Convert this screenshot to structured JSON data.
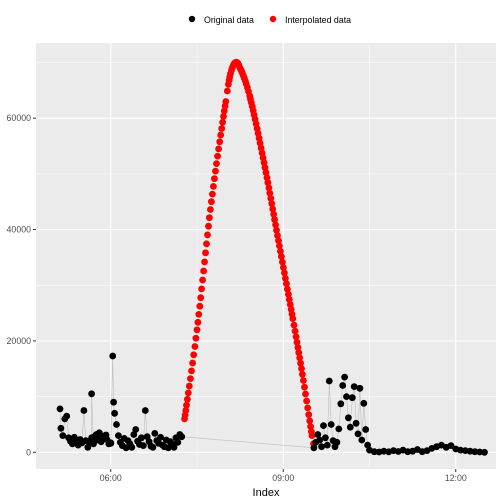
{
  "chart_data": {
    "type": "scatter",
    "title": "",
    "xlabel": "Index",
    "ylabel": "",
    "x_ticks": [
      "06:00",
      "09:00",
      "12:00"
    ],
    "y_ticks": [
      "0",
      "20000",
      "40000",
      "60000"
    ],
    "x_range": [
      "04:42",
      "12:42"
    ],
    "ylim": [
      -3000,
      73500
    ],
    "grid": true,
    "legend_position": "top",
    "series": [
      {
        "name": "Original data",
        "color": "#000000",
        "connector_line_color": "#bdbdbd",
        "points": [
          [
            "05:07",
            7800
          ],
          [
            "05:08",
            4300
          ],
          [
            "05:10",
            3000
          ],
          [
            "05:12",
            6000
          ],
          [
            "05:14",
            6500
          ],
          [
            "05:16",
            2600
          ],
          [
            "05:18",
            2000
          ],
          [
            "05:20",
            1500
          ],
          [
            "05:22",
            2700
          ],
          [
            "05:24",
            1900
          ],
          [
            "05:26",
            1300
          ],
          [
            "05:28",
            2300
          ],
          [
            "05:30",
            1700
          ],
          [
            "05:32",
            7500
          ],
          [
            "05:34",
            2100
          ],
          [
            "05:36",
            900
          ],
          [
            "05:38",
            1800
          ],
          [
            "05:40",
            2600
          ],
          [
            "05:42",
            1500
          ],
          [
            "05:44",
            3000
          ],
          [
            "05:46",
            2200
          ],
          [
            "05:48",
            3500
          ],
          [
            "05:50",
            1900
          ],
          [
            "05:52",
            2800
          ],
          [
            "05:54",
            3000
          ],
          [
            "05:56",
            2300
          ],
          [
            "05:58",
            1500
          ],
          [
            "06:00",
            1700
          ],
          [
            "05:40",
            10500
          ],
          [
            "05:45",
            3200
          ],
          [
            "05:50",
            2400
          ],
          [
            "05:55",
            3100
          ],
          [
            "06:00",
            1600
          ],
          [
            "06:02",
            17300
          ],
          [
            "06:03",
            9000
          ],
          [
            "06:04",
            7000
          ],
          [
            "06:06",
            5000
          ],
          [
            "06:08",
            3000
          ],
          [
            "06:10",
            1800
          ],
          [
            "06:12",
            1200
          ],
          [
            "06:14",
            2500
          ],
          [
            "06:16",
            800
          ],
          [
            "06:18",
            2100
          ],
          [
            "06:20",
            1500
          ],
          [
            "06:22",
            900
          ],
          [
            "06:24",
            3200
          ],
          [
            "06:26",
            4100
          ],
          [
            "06:28",
            2000
          ],
          [
            "06:30",
            1400
          ],
          [
            "06:32",
            2600
          ],
          [
            "06:34",
            1200
          ],
          [
            "06:36",
            7500
          ],
          [
            "06:38",
            2800
          ],
          [
            "06:40",
            1900
          ],
          [
            "06:42",
            1100
          ],
          [
            "06:44",
            900
          ],
          [
            "06:46",
            3400
          ],
          [
            "06:48",
            2100
          ],
          [
            "06:50",
            1600
          ],
          [
            "06:52",
            2700
          ],
          [
            "06:54",
            1300
          ],
          [
            "06:56",
            1000
          ],
          [
            "06:58",
            2200
          ],
          [
            "07:00",
            800
          ],
          [
            "07:02",
            1900
          ],
          [
            "07:04",
            1500
          ],
          [
            "07:06",
            900
          ],
          [
            "07:08",
            2600
          ],
          [
            "07:10",
            1800
          ],
          [
            "07:12",
            3200
          ],
          [
            "07:14",
            2800
          ],
          [
            "09:32",
            800
          ],
          [
            "09:34",
            1800
          ],
          [
            "09:36",
            3200
          ],
          [
            "09:38",
            2200
          ],
          [
            "09:40",
            1000
          ],
          [
            "09:42",
            4800
          ],
          [
            "09:44",
            2600
          ],
          [
            "09:46",
            1300
          ],
          [
            "09:48",
            12800
          ],
          [
            "09:50",
            5000
          ],
          [
            "09:52",
            2100
          ],
          [
            "09:54",
            1000
          ],
          [
            "09:56",
            1800
          ],
          [
            "09:58",
            4200
          ],
          [
            "10:00",
            8700
          ],
          [
            "10:02",
            12000
          ],
          [
            "10:04",
            13500
          ],
          [
            "10:06",
            10000
          ],
          [
            "10:08",
            6200
          ],
          [
            "10:10",
            4500
          ],
          [
            "10:12",
            9800
          ],
          [
            "10:14",
            11800
          ],
          [
            "10:16",
            5200
          ],
          [
            "10:18",
            3300
          ],
          [
            "10:20",
            11500
          ],
          [
            "10:22",
            2200
          ],
          [
            "10:24",
            8800
          ],
          [
            "10:26",
            4100
          ],
          [
            "10:28",
            1300
          ],
          [
            "10:30",
            400
          ],
          [
            "10:35",
            100
          ],
          [
            "10:40",
            50
          ],
          [
            "10:45",
            200
          ],
          [
            "10:50",
            80
          ],
          [
            "10:55",
            300
          ],
          [
            "11:00",
            150
          ],
          [
            "11:05",
            400
          ],
          [
            "11:10",
            100
          ],
          [
            "11:15",
            200
          ],
          [
            "11:20",
            500
          ],
          [
            "11:25",
            100
          ],
          [
            "11:30",
            300
          ],
          [
            "11:35",
            700
          ],
          [
            "11:40",
            1000
          ],
          [
            "11:45",
            1300
          ],
          [
            "11:50",
            900
          ],
          [
            "11:55",
            1200
          ],
          [
            "12:00",
            600
          ],
          [
            "12:05",
            400
          ],
          [
            "12:10",
            300
          ],
          [
            "12:15",
            200
          ],
          [
            "12:20",
            100
          ],
          [
            "12:25",
            50
          ],
          [
            "12:30",
            0
          ]
        ]
      },
      {
        "name": "Interpolated data",
        "color": "#ff0000",
        "curve_points": [
          [
            "07:17",
            6000
          ],
          [
            "07:30",
            22000
          ],
          [
            "07:45",
            45000
          ],
          [
            "08:00",
            63000
          ],
          [
            "08:05",
            68000
          ],
          [
            "08:10",
            70000
          ],
          [
            "08:15",
            69000
          ],
          [
            "08:25",
            64000
          ],
          [
            "08:40",
            52000
          ],
          [
            "08:55",
            38000
          ],
          [
            "09:10",
            24000
          ],
          [
            "09:20",
            14000
          ],
          [
            "09:30",
            3000
          ],
          [
            "09:32",
            1500
          ]
        ]
      }
    ]
  }
}
